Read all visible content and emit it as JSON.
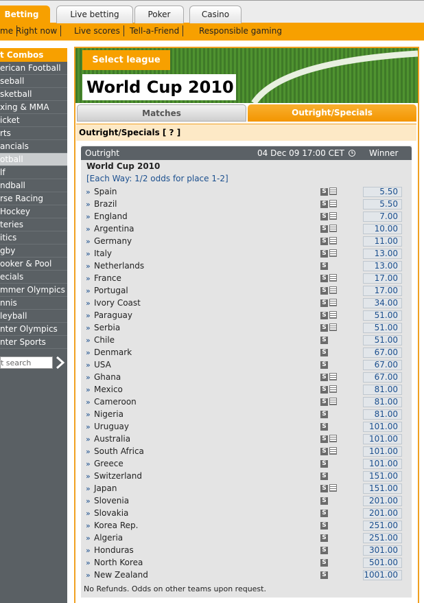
{
  "top_tabs": [
    "Betting",
    "Live betting",
    "Poker",
    "Casino"
  ],
  "nav_links": [
    "me",
    "Right now",
    "Live scores",
    "Tell-a-Friend",
    "Responsible gaming"
  ],
  "sidebar": {
    "heading": "t Combos",
    "items": [
      "erican Football",
      "seball",
      "sketball",
      "xing & MMA",
      "icket",
      "rts",
      "ancials",
      "otball",
      "lf",
      "ndball",
      "rse Racing",
      " Hockey",
      "teries",
      "itics",
      "gby",
      "ooker & Pool",
      "ecials",
      "mmer Olympics",
      "nnis",
      "leyball",
      "nter Olympics",
      "nter Sports"
    ],
    "selected": 7,
    "search_placeholder": "t search"
  },
  "banner": {
    "button": "Select league",
    "title": "World Cup 2010"
  },
  "tabs": {
    "items": [
      "Matches",
      "Outright/Specials"
    ],
    "active": 1
  },
  "section_title": "Outright/Specials [ ? ]",
  "outright": {
    "header": {
      "type": "Outright",
      "date": "04 Dec 09 17:00 CET",
      "market": "Winner"
    },
    "event": "World Cup 2010",
    "each_way": "[Each Way: 1/2 odds for place 1-2]",
    "bullet": "»",
    "icon_text": "S",
    "rows": [
      {
        "team": "Spain",
        "odds": "5.50",
        "list_icon": true
      },
      {
        "team": "Brazil",
        "odds": "5.50",
        "list_icon": true
      },
      {
        "team": "England",
        "odds": "7.00",
        "list_icon": true
      },
      {
        "team": "Argentina",
        "odds": "10.00",
        "list_icon": true
      },
      {
        "team": "Germany",
        "odds": "11.00",
        "list_icon": true
      },
      {
        "team": "Italy",
        "odds": "13.00",
        "list_icon": true
      },
      {
        "team": "Netherlands",
        "odds": "13.00",
        "list_icon": false
      },
      {
        "team": "France",
        "odds": "17.00",
        "list_icon": true
      },
      {
        "team": "Portugal",
        "odds": "17.00",
        "list_icon": true
      },
      {
        "team": "Ivory Coast",
        "odds": "34.00",
        "list_icon": true
      },
      {
        "team": "Paraguay",
        "odds": "51.00",
        "list_icon": true
      },
      {
        "team": "Serbia",
        "odds": "51.00",
        "list_icon": true
      },
      {
        "team": "Chile",
        "odds": "51.00",
        "list_icon": false
      },
      {
        "team": "Denmark",
        "odds": "67.00",
        "list_icon": false
      },
      {
        "team": "USA",
        "odds": "67.00",
        "list_icon": false
      },
      {
        "team": "Ghana",
        "odds": "67.00",
        "list_icon": true
      },
      {
        "team": "Mexico",
        "odds": "81.00",
        "list_icon": true
      },
      {
        "team": "Cameroon",
        "odds": "81.00",
        "list_icon": true
      },
      {
        "team": "Nigeria",
        "odds": "81.00",
        "list_icon": false
      },
      {
        "team": "Uruguay",
        "odds": "101.00",
        "list_icon": false
      },
      {
        "team": "Australia",
        "odds": "101.00",
        "list_icon": true
      },
      {
        "team": "South Africa",
        "odds": "101.00",
        "list_icon": true
      },
      {
        "team": "Greece",
        "odds": "101.00",
        "list_icon": false
      },
      {
        "team": "Switzerland",
        "odds": "151.00",
        "list_icon": false
      },
      {
        "team": "Japan",
        "odds": "151.00",
        "list_icon": true
      },
      {
        "team": "Slovenia",
        "odds": "201.00",
        "list_icon": false
      },
      {
        "team": "Slovakia",
        "odds": "201.00",
        "list_icon": false
      },
      {
        "team": "Korea Rep.",
        "odds": "251.00",
        "list_icon": false
      },
      {
        "team": "Algeria",
        "odds": "251.00",
        "list_icon": false
      },
      {
        "team": "Honduras",
        "odds": "301.00",
        "list_icon": false
      },
      {
        "team": "North Korea",
        "odds": "501.00",
        "list_icon": false
      },
      {
        "team": "New Zealand",
        "odds": "1001.00",
        "list_icon": false
      }
    ],
    "footer": "No Refunds. Odds on other teams upon request."
  }
}
